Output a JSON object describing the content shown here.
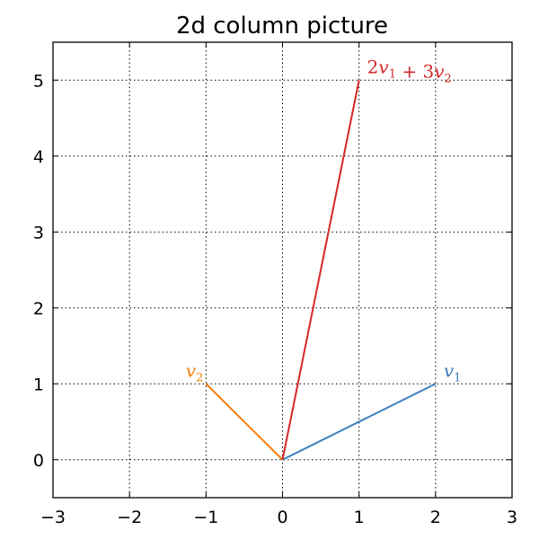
{
  "chart_data": {
    "type": "line",
    "title": "2d column picture",
    "xlabel": "",
    "ylabel": "",
    "xlim": [
      -3,
      3
    ],
    "ylim": [
      -0.5,
      5.5
    ],
    "x_ticks": [
      -3,
      -2,
      -1,
      0,
      1,
      2,
      3
    ],
    "x_tick_labels": [
      "−3",
      "−2",
      "−1",
      "0",
      "1",
      "2",
      "3"
    ],
    "y_ticks": [
      0,
      1,
      2,
      3,
      4,
      5
    ],
    "y_tick_labels": [
      "0",
      "1",
      "2",
      "3",
      "4",
      "5"
    ],
    "grid": true,
    "grid_style": "dotted",
    "series": [
      {
        "name": "v1",
        "x": [
          0,
          2
        ],
        "y": [
          0,
          1
        ],
        "color": "#3d7fbf",
        "label_parts": [
          {
            "t": "v",
            "s": false
          },
          {
            "t": "1",
            "s": true
          }
        ]
      },
      {
        "name": "v2",
        "x": [
          0,
          -1
        ],
        "y": [
          0,
          1
        ],
        "color": "#f07f0e",
        "label_parts": [
          {
            "t": "v",
            "s": false
          },
          {
            "t": "2",
            "s": true
          }
        ]
      },
      {
        "name": "2v1 + 3v2",
        "x": [
          0,
          1
        ],
        "y": [
          0,
          5
        ],
        "color": "#d62728",
        "label_parts": [
          {
            "t": "2",
            "s": false,
            "up": true
          },
          {
            "t": "v",
            "s": false
          },
          {
            "t": "1",
            "s": true
          },
          {
            "t": " + ",
            "s": false,
            "up": true
          },
          {
            "t": "3",
            "s": false,
            "up": true
          },
          {
            "t": "v",
            "s": false
          },
          {
            "t": "2",
            "s": true
          }
        ]
      }
    ]
  }
}
